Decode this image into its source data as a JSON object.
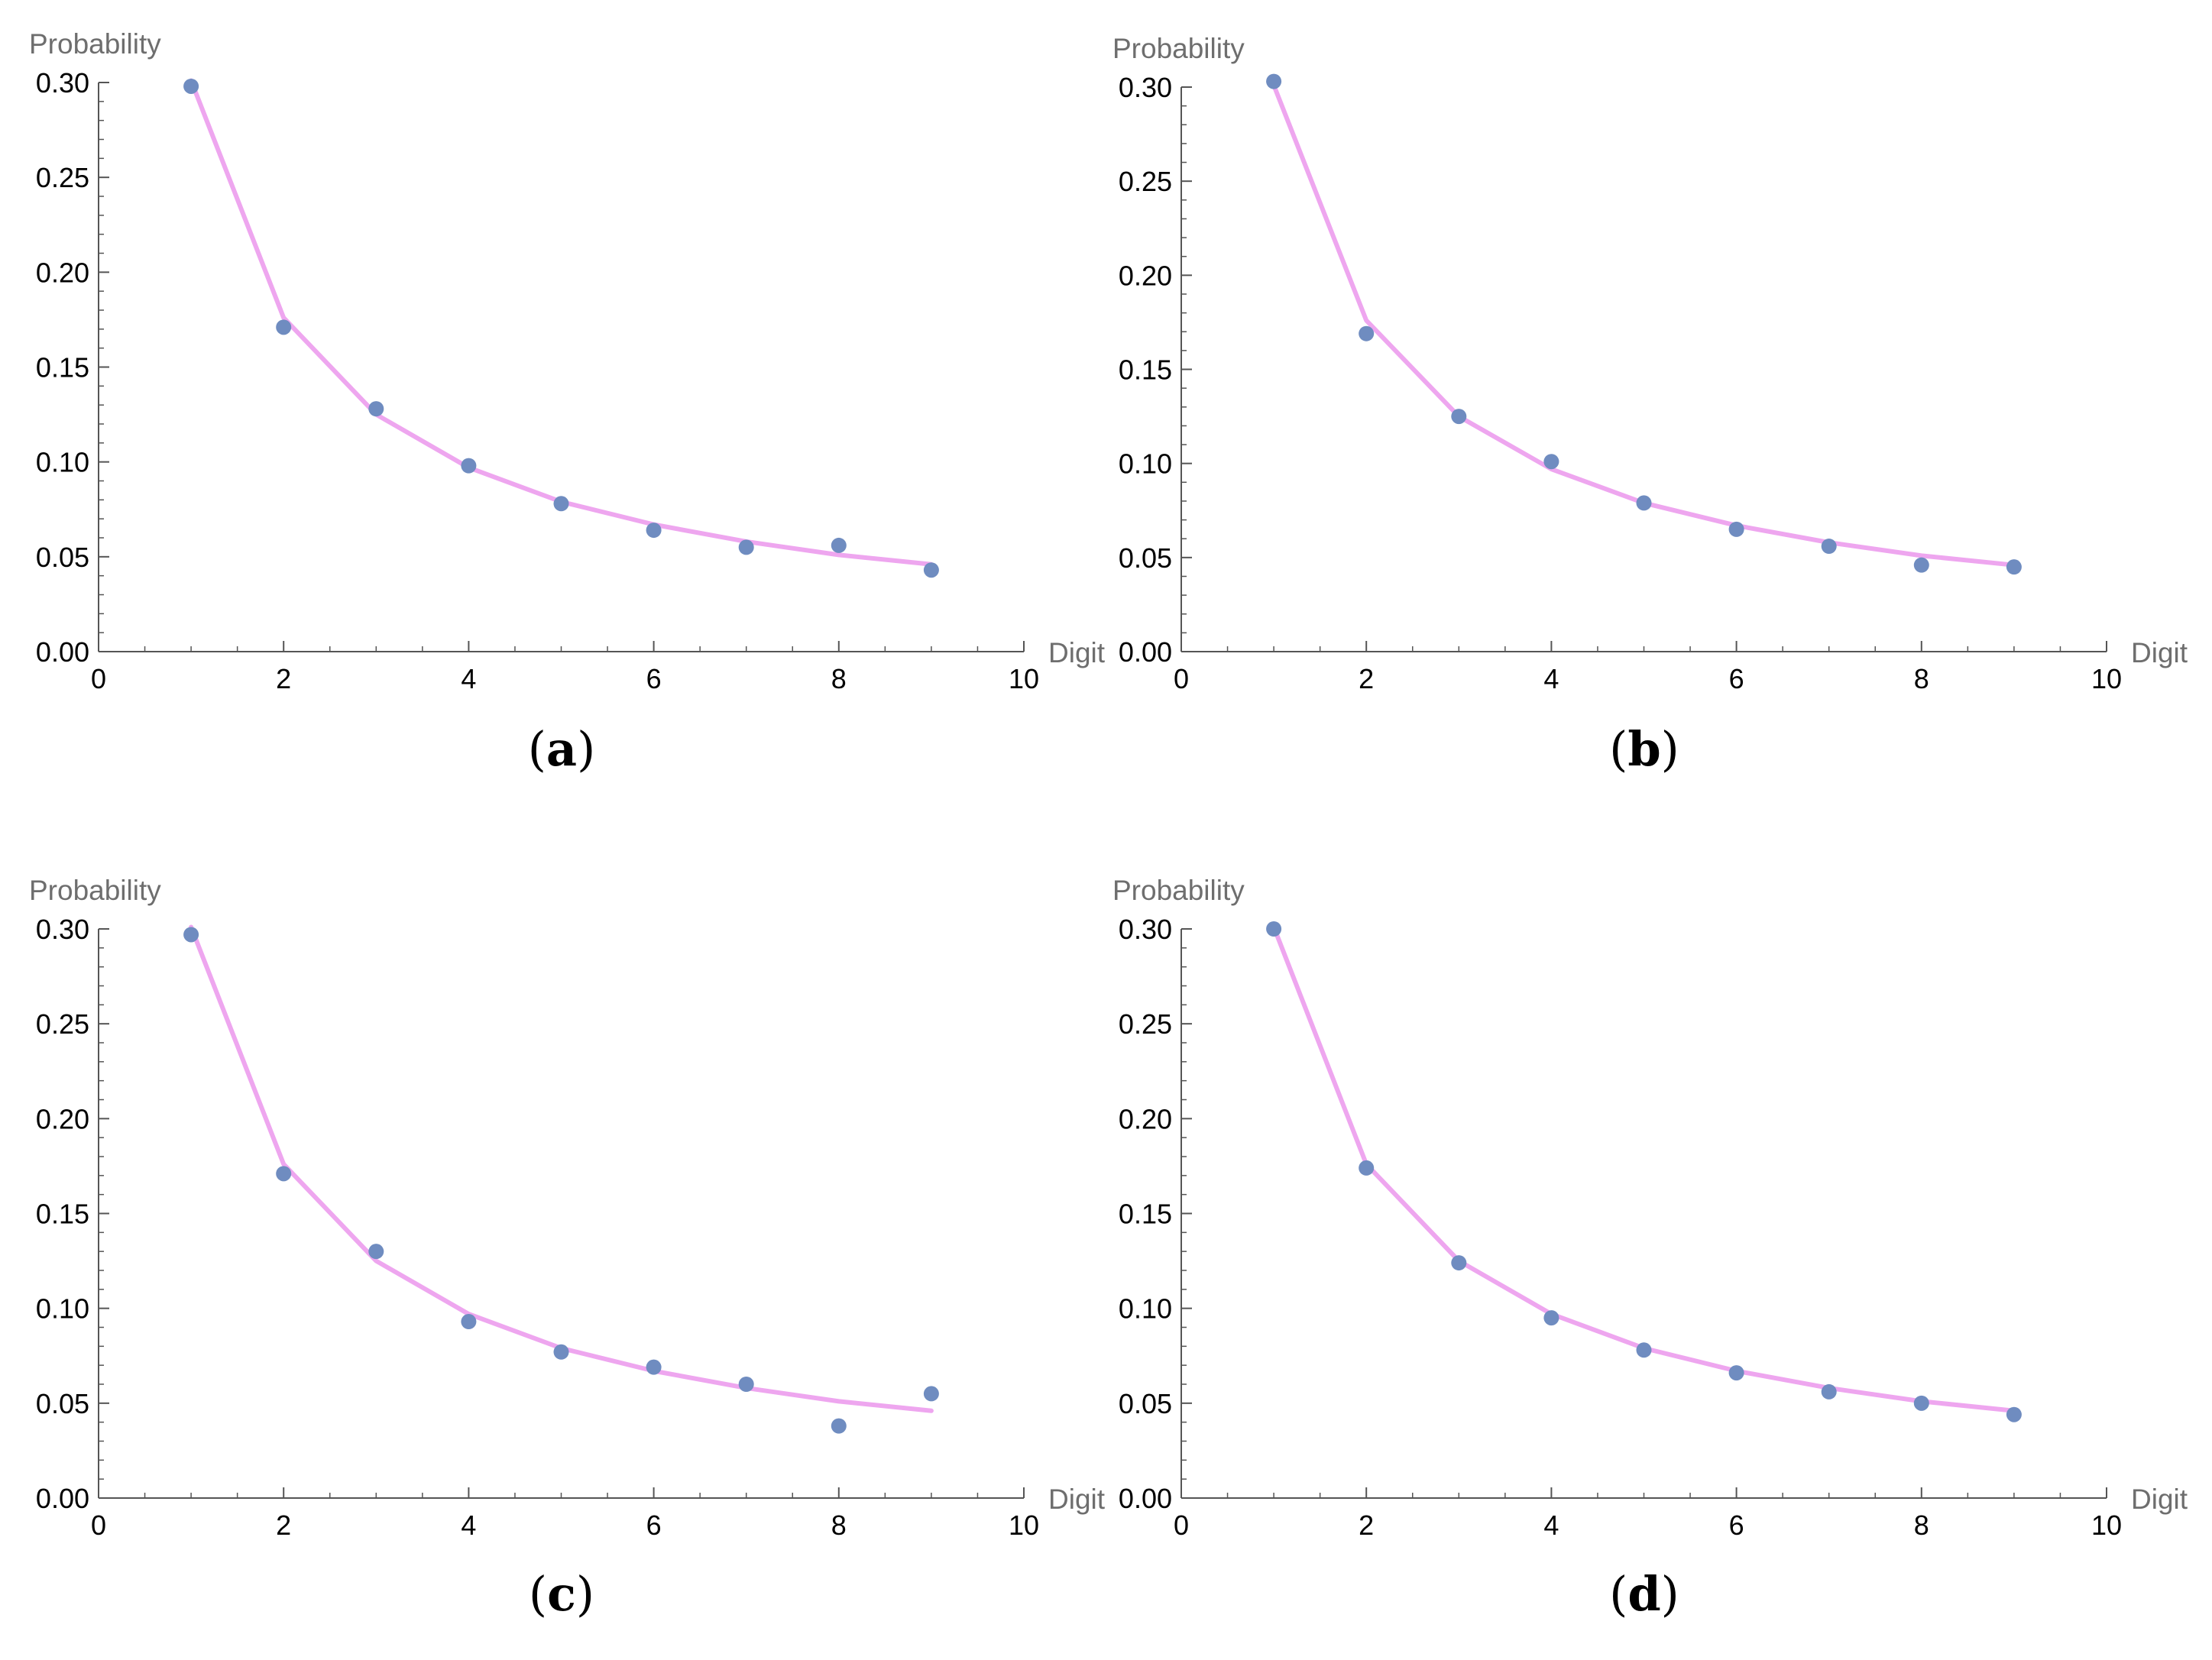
{
  "colors": {
    "points": "#6f8cc0",
    "curve": "#eea6ef",
    "axis": "#555555",
    "axis_title": "#6e6e6e"
  },
  "chart_data": [
    {
      "type": "scatter",
      "panel_label": "a",
      "xlabel": "Digit",
      "ylabel": "Probability",
      "xlim": [
        0,
        10
      ],
      "ylim": [
        0,
        0.3
      ],
      "xticks": [
        "0",
        "2",
        "4",
        "6",
        "8",
        "10"
      ],
      "yticks": [
        "0.00",
        "0.05",
        "0.10",
        "0.15",
        "0.20",
        "0.25",
        "0.30"
      ],
      "x": [
        1,
        2,
        3,
        4,
        5,
        6,
        7,
        8,
        9
      ],
      "observed": [
        0.298,
        0.171,
        0.128,
        0.098,
        0.078,
        0.064,
        0.055,
        0.056,
        0.043
      ],
      "expected": [
        0.301,
        0.176,
        0.125,
        0.097,
        0.079,
        0.067,
        0.058,
        0.051,
        0.046
      ]
    },
    {
      "type": "scatter",
      "panel_label": "b",
      "xlabel": "Digit",
      "ylabel": "Probability",
      "xlim": [
        0,
        10
      ],
      "ylim": [
        0,
        0.3
      ],
      "xticks": [
        "0",
        "2",
        "4",
        "6",
        "8",
        "10"
      ],
      "yticks": [
        "0.00",
        "0.05",
        "0.10",
        "0.15",
        "0.20",
        "0.25",
        "0.30"
      ],
      "x": [
        1,
        2,
        3,
        4,
        5,
        6,
        7,
        8,
        9
      ],
      "observed": [
        0.303,
        0.169,
        0.125,
        0.101,
        0.079,
        0.065,
        0.056,
        0.046,
        0.045
      ],
      "expected": [
        0.301,
        0.176,
        0.125,
        0.097,
        0.079,
        0.067,
        0.058,
        0.051,
        0.046
      ]
    },
    {
      "type": "scatter",
      "panel_label": "c",
      "xlabel": "Digit",
      "ylabel": "Probability",
      "xlim": [
        0,
        10
      ],
      "ylim": [
        0,
        0.3
      ],
      "xticks": [
        "0",
        "2",
        "4",
        "6",
        "8",
        "10"
      ],
      "yticks": [
        "0.00",
        "0.05",
        "0.10",
        "0.15",
        "0.20",
        "0.25",
        "0.30"
      ],
      "x": [
        1,
        2,
        3,
        4,
        5,
        6,
        7,
        8,
        9
      ],
      "observed": [
        0.297,
        0.171,
        0.13,
        0.093,
        0.077,
        0.069,
        0.06,
        0.038,
        0.055
      ],
      "expected": [
        0.301,
        0.176,
        0.125,
        0.097,
        0.079,
        0.067,
        0.058,
        0.051,
        0.046
      ]
    },
    {
      "type": "scatter",
      "panel_label": "d",
      "xlabel": "Digit",
      "ylabel": "Probability",
      "xlim": [
        0,
        10
      ],
      "ylim": [
        0,
        0.3
      ],
      "xticks": [
        "0",
        "2",
        "4",
        "6",
        "8",
        "10"
      ],
      "yticks": [
        "0.00",
        "0.05",
        "0.10",
        "0.15",
        "0.20",
        "0.25",
        "0.30"
      ],
      "x": [
        1,
        2,
        3,
        4,
        5,
        6,
        7,
        8,
        9
      ],
      "observed": [
        0.3,
        0.174,
        0.124,
        0.095,
        0.078,
        0.066,
        0.056,
        0.05,
        0.044
      ],
      "expected": [
        0.301,
        0.176,
        0.125,
        0.097,
        0.079,
        0.067,
        0.058,
        0.051,
        0.046
      ]
    }
  ]
}
